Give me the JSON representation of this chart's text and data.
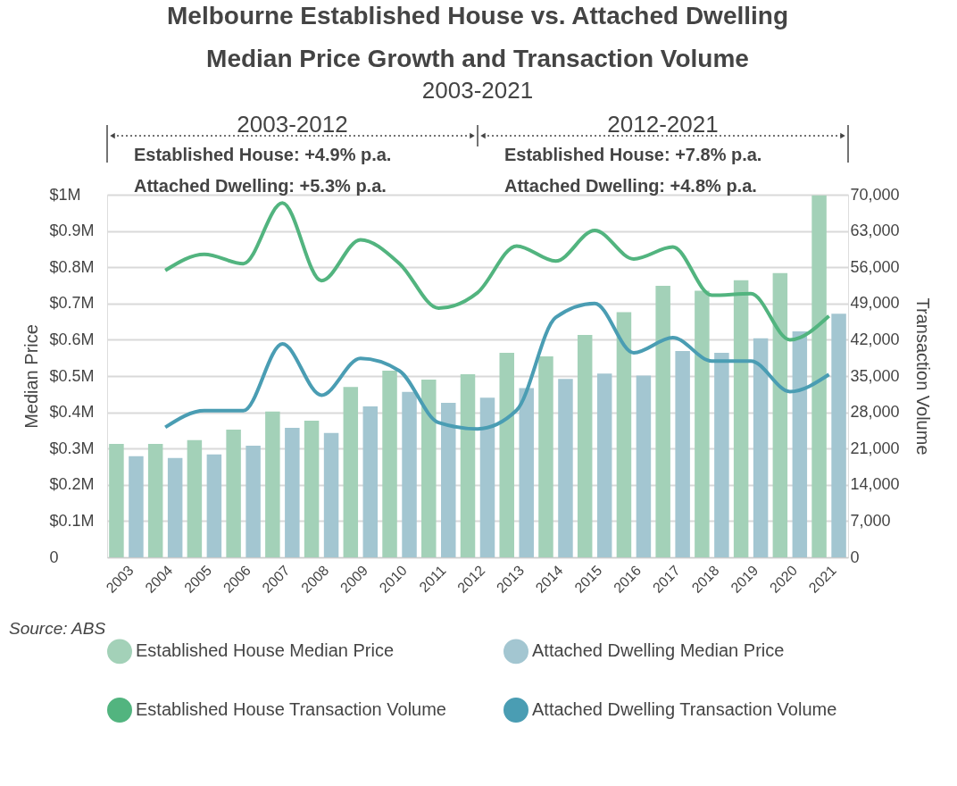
{
  "chart_data": {
    "type": "bar",
    "title": "Melbourne Established House vs. Attached Dwelling Median Price Growth and Transaction Volume",
    "subtitle": "2003-2021",
    "categories": [
      "2003",
      "2004",
      "2005",
      "2006",
      "2007",
      "2008",
      "2009",
      "2010",
      "2011",
      "2012",
      "2013",
      "2014",
      "2015",
      "2016",
      "2017",
      "2018",
      "2019",
      "2020",
      "2021"
    ],
    "series": [
      {
        "name": "Established House Median Price",
        "color": "#a3d1b8",
        "values": [
          0.313,
          0.313,
          0.323,
          0.352,
          0.402,
          0.377,
          0.47,
          0.515,
          0.49,
          0.505,
          0.564,
          0.554,
          0.613,
          0.676,
          0.749,
          0.735,
          0.764,
          0.784,
          0.998
        ]
      },
      {
        "name": "Attached Dwelling Median Price",
        "color": "#a3c6d1",
        "values": [
          0.279,
          0.274,
          0.284,
          0.308,
          0.357,
          0.343,
          0.416,
          0.456,
          0.426,
          0.44,
          0.467,
          0.492,
          0.507,
          0.501,
          0.569,
          0.564,
          0.604,
          0.623,
          0.672
        ]
      },
      {
        "name": "Established House Transaction Volume",
        "type": "line",
        "axis": "y2",
        "color": "#52b47f",
        "values": [
          null,
          55400,
          58500,
          56700,
          68400,
          53400,
          61300,
          56700,
          48100,
          51100,
          60100,
          57200,
          63100,
          57600,
          59900,
          50600,
          50900,
          42000,
          46600
        ]
      },
      {
        "name": "Attached Dwelling Transaction Volume",
        "type": "line",
        "axis": "y2",
        "color": "#4a9db3",
        "values": [
          null,
          25100,
          28300,
          28300,
          41200,
          31300,
          38400,
          36000,
          26000,
          24800,
          28400,
          46300,
          49000,
          39500,
          42400,
          37900,
          37900,
          32000,
          35300
        ]
      }
    ],
    "ylabel": "Median Price",
    "y2label": "Transaction Volume",
    "ylim": [
      0,
      1
    ],
    "yticks": [
      0,
      {
        "value": 0.1,
        "label": "$0.1M"
      },
      {
        "value": 0.2,
        "label": "$0.2M"
      },
      {
        "value": 0.3,
        "label": "$0.3M"
      },
      {
        "value": 0.4,
        "label": "$0.4M"
      },
      {
        "value": 0.5,
        "label": "$0.5M"
      },
      {
        "value": 0.6,
        "label": "$0.6M"
      },
      {
        "value": 0.7,
        "label": "$0.7M"
      },
      {
        "value": 0.8,
        "label": "$0.8M"
      },
      {
        "value": 0.9,
        "label": "$0.9M"
      },
      {
        "value": 1,
        "label": "$1M"
      }
    ],
    "y2lim": [
      0,
      70000
    ],
    "y2ticks": [
      0,
      {
        "value": 7000,
        "label": "7,000"
      },
      {
        "value": 14000,
        "label": "14,000"
      },
      {
        "value": 21000,
        "label": "21,000"
      },
      {
        "value": 28000,
        "label": "28,000"
      },
      {
        "value": 35000,
        "label": "35,000"
      },
      {
        "value": 42000,
        "label": "42,000"
      },
      {
        "value": 49000,
        "label": "49,000"
      },
      {
        "value": 56000,
        "label": "56,000"
      },
      {
        "value": 63000,
        "label": "63,000"
      },
      {
        "value": 70000,
        "label": "70,000"
      }
    ],
    "annotations": [
      "2003-2012",
      "2012-2021",
      "Established House: +4.9% p.a.",
      "Attached Dwelling: +5.3% p.a.",
      "Established House: +7.8% p.a.",
      "Attached Dwelling: +4.8% p.a.",
      "Source:  ABS"
    ],
    "grid": "y",
    "legend": "bottom"
  }
}
